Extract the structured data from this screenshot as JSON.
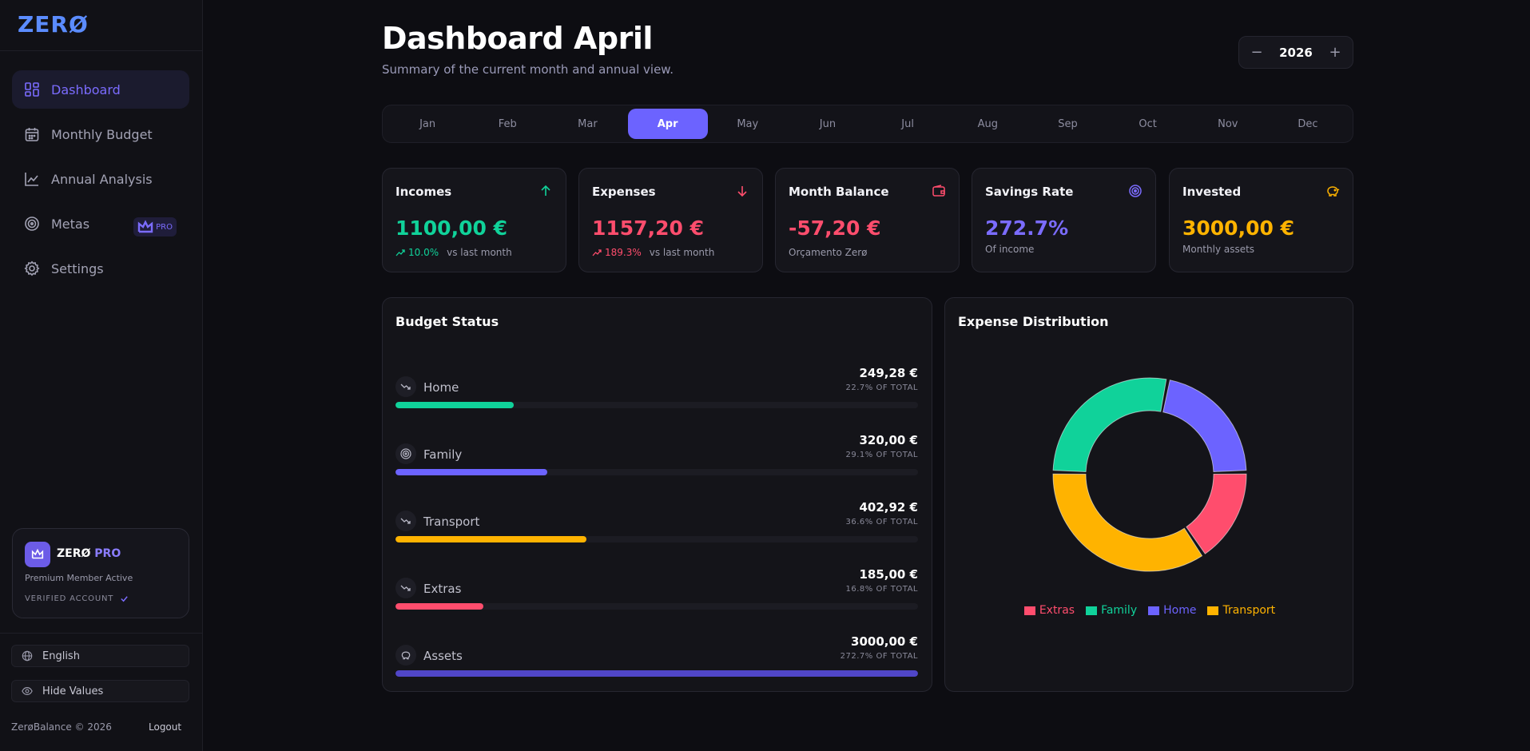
{
  "brand": {
    "logo": "ZERØ"
  },
  "sidebar": {
    "items": [
      {
        "label": "Dashboard",
        "icon": "dashboard-icon",
        "active": true
      },
      {
        "label": "Monthly Budget",
        "icon": "calendar-icon"
      },
      {
        "label": "Annual Analysis",
        "icon": "chart-line-icon"
      },
      {
        "label": "Metas",
        "icon": "target-icon",
        "badge": "PRO"
      },
      {
        "label": "Settings",
        "icon": "gear-icon"
      }
    ],
    "pro_card": {
      "title_main": "ZERØ",
      "title_accent": "PRO",
      "subtitle": "Premium Member Active",
      "verified": "VERIFIED ACCOUNT"
    },
    "language": "English",
    "hide_values": "Hide Values",
    "footer": "ZerøBalance © 2026",
    "logout": "Logout"
  },
  "header": {
    "title": "Dashboard April",
    "subtitle": "Summary of the current month and annual view.",
    "year": "2026",
    "minus": "−",
    "plus": "+"
  },
  "months": [
    "Jan",
    "Feb",
    "Mar",
    "Apr",
    "May",
    "Jun",
    "Jul",
    "Aug",
    "Sep",
    "Oct",
    "Nov",
    "Dec"
  ],
  "active_month": "Apr",
  "stats": {
    "incomes": {
      "label": "Incomes",
      "value": "1100,00 €",
      "change": "10.0%",
      "note": "vs last month"
    },
    "expenses": {
      "label": "Expenses",
      "value": "1157,20 €",
      "change": "189.3%",
      "note": "vs last month"
    },
    "balance": {
      "label": "Month Balance",
      "value": "-57,20 €",
      "note": "Orçamento Zerø"
    },
    "savings": {
      "label": "Savings Rate",
      "value": "272.7%",
      "note": "Of income"
    },
    "invested": {
      "label": "Invested",
      "value": "3000,00 €",
      "note": "Monthly assets"
    }
  },
  "budget": {
    "title": "Budget Status",
    "rows": [
      {
        "name": "Home",
        "amount": "249,28 €",
        "pct_label": "22.7% OF TOTAL",
        "fill": 0.227,
        "color": "#10d29a"
      },
      {
        "name": "Family",
        "amount": "320,00 €",
        "pct_label": "29.1% OF TOTAL",
        "fill": 0.291,
        "color": "#6c63ff"
      },
      {
        "name": "Transport",
        "amount": "402,92 €",
        "pct_label": "36.6% OF TOTAL",
        "fill": 0.366,
        "color": "#ffb300"
      },
      {
        "name": "Extras",
        "amount": "185,00 €",
        "pct_label": "16.8% OF TOTAL",
        "fill": 0.168,
        "color": "#ff4d6d"
      },
      {
        "name": "Assets",
        "amount": "3000,00 €",
        "pct_label": "272.7% OF TOTAL",
        "fill": 1.0,
        "color": "#5046c8"
      }
    ]
  },
  "distribution": {
    "title": "Expense Distribution"
  },
  "chart_data": {
    "type": "pie",
    "variant": "donut",
    "categories": [
      "Home",
      "Extras",
      "Transport",
      "Family"
    ],
    "values": [
      249.28,
      185.0,
      402.92,
      320.0
    ],
    "colors": [
      "#6c63ff",
      "#ff4d6d",
      "#ffb300",
      "#10d29a"
    ],
    "legend": [
      {
        "name": "Extras",
        "color": "#ff4d6d"
      },
      {
        "name": "Family",
        "color": "#10d29a"
      },
      {
        "name": "Home",
        "color": "#6c63ff"
      },
      {
        "name": "Transport",
        "color": "#ffb300"
      }
    ],
    "legend_position": "bottom"
  }
}
